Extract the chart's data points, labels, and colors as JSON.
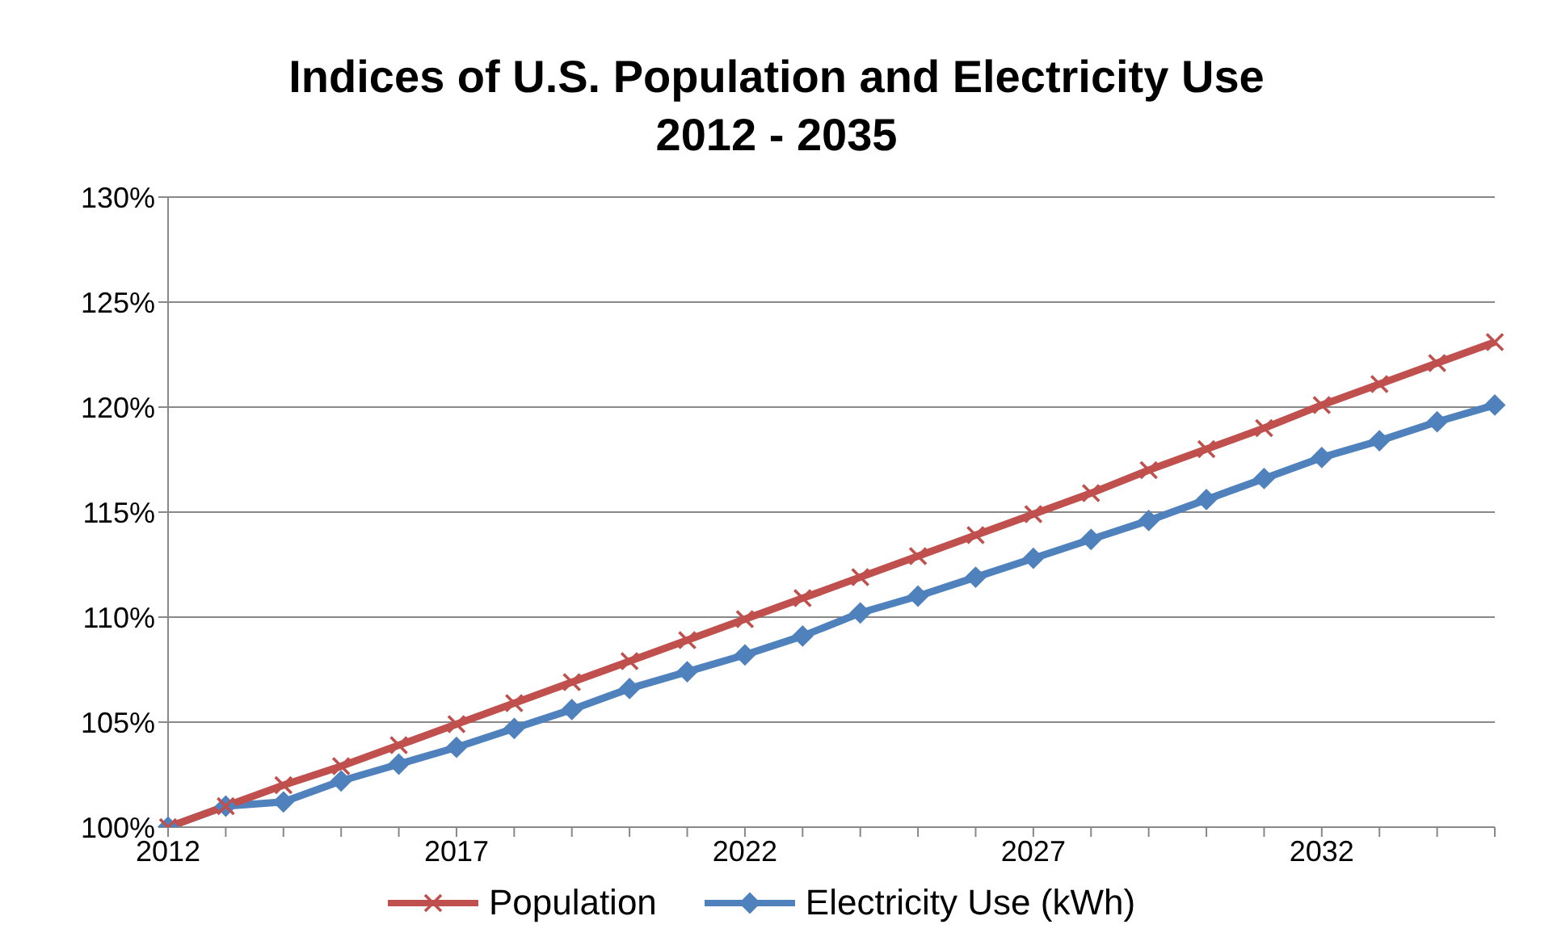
{
  "chart_data": {
    "type": "line",
    "title": "Indices of U.S. Population and Electricity Use",
    "subtitle": "2012 - 2035",
    "categories": [
      "2012",
      null,
      null,
      null,
      null,
      "2017",
      null,
      null,
      null,
      null,
      "2022",
      null,
      null,
      null,
      null,
      "2027",
      null,
      null,
      null,
      null,
      "2032",
      null,
      null,
      null
    ],
    "series": [
      {
        "name": "Population",
        "color": "#c0504d",
        "marker": "cross",
        "values": [
          100,
          101,
          102,
          102.9,
          103.9,
          104.9,
          105.9,
          106.9,
          107.9,
          108.9,
          109.9,
          110.9,
          111.9,
          112.9,
          113.9,
          114.9,
          115.9,
          117,
          118,
          119,
          120.1,
          121.1,
          122.1,
          123.1
        ]
      },
      {
        "name": "Electricity Use (kWh)",
        "color": "#4f81bd",
        "marker": "diamond",
        "values": [
          100,
          101,
          101.2,
          102.2,
          103,
          103.8,
          104.7,
          105.6,
          106.6,
          107.4,
          108.2,
          109.1,
          110.2,
          111,
          111.9,
          112.8,
          113.7,
          114.6,
          115.6,
          116.6,
          117.6,
          118.4,
          119.3,
          120.1
        ]
      }
    ],
    "ylim": [
      100,
      130
    ],
    "yticks": [
      {
        "value": 100,
        "label": "100%"
      },
      {
        "value": 105,
        "label": "105%"
      },
      {
        "value": 110,
        "label": "110%"
      },
      {
        "value": 115,
        "label": "115%"
      },
      {
        "value": 120,
        "label": "120%"
      },
      {
        "value": 125,
        "label": "125%"
      },
      {
        "value": 130,
        "label": "130%"
      }
    ],
    "grid": "y",
    "legend": "bottom",
    "line_style": "solid"
  }
}
